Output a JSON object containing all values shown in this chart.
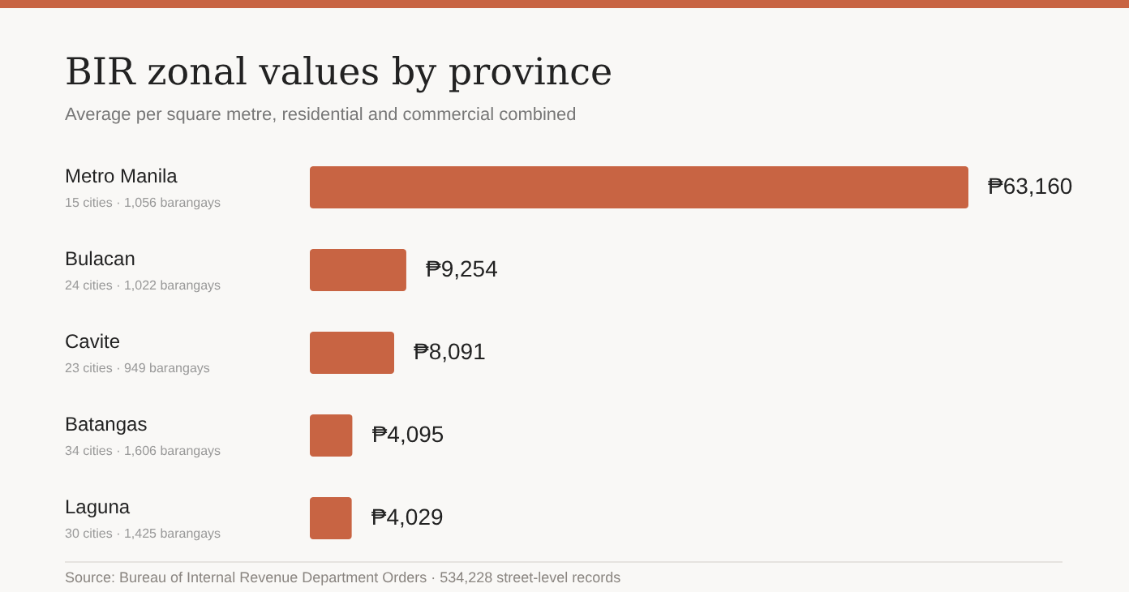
{
  "chart_data": {
    "type": "bar",
    "orientation": "horizontal",
    "title": "BIR zonal values by province",
    "subtitle": "Average per square metre, residential and commercial combined",
    "categories": [
      "Metro Manila",
      "Bulacan",
      "Cavite",
      "Batangas",
      "Laguna"
    ],
    "values": [
      63160,
      9254,
      8091,
      4095,
      4029
    ],
    "value_labels": [
      "₱63,160",
      "₱9,254",
      "₱8,091",
      "₱4,095",
      "₱4,029"
    ],
    "color": "#c86443",
    "annotations": [
      "15 cities · 1,056 barangays",
      "24 cities · 1,022 barangays",
      "23 cities · 949 barangays",
      "34 cities · 1,606 barangays",
      "30 cities · 1,425 barangays",
      "Source: Bureau of Internal Revenue Department Orders · 534,228 street-level records"
    ]
  }
}
